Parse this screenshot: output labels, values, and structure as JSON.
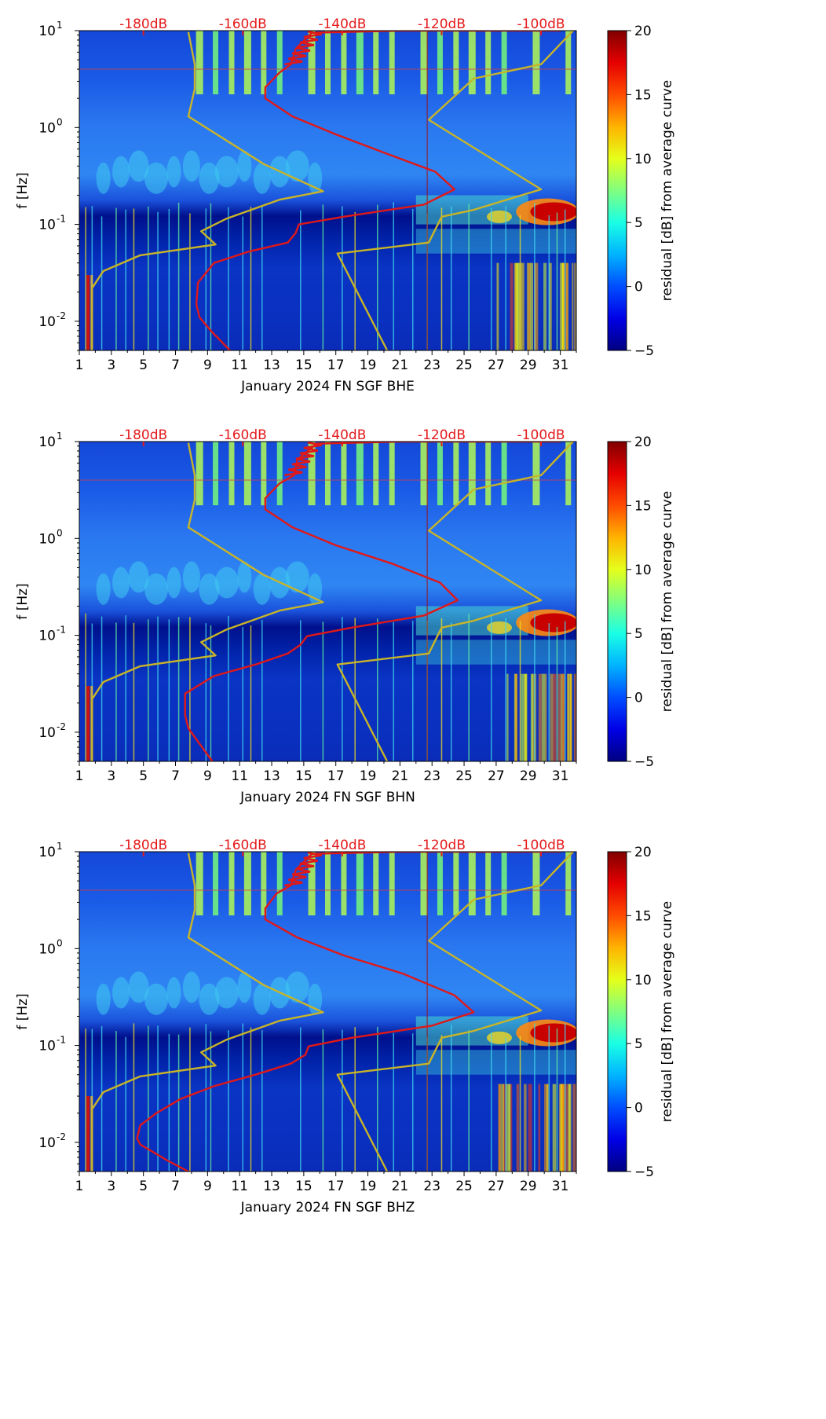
{
  "chart_data": [
    {
      "type": "heatmap",
      "title": "",
      "xlabel": "January 2024 FN SGF  BHE",
      "ylabel": "f [Hz]",
      "x_ticks": [
        "1",
        "3",
        "5",
        "7",
        "9",
        "11",
        "13",
        "15",
        "17",
        "19",
        "21",
        "23",
        "25",
        "27",
        "29",
        "31"
      ],
      "y_ticks": [
        "10^-2",
        "10^-1",
        "10^0",
        "10^1"
      ],
      "xlim": [
        1,
        32
      ],
      "ylim_hz": [
        0.005,
        10
      ],
      "top_labels": [
        "-180dB",
        "-160dB",
        "-140dB",
        "-120dB",
        "-100dB"
      ],
      "colorbar": {
        "label": "residual [dB] from average curve",
        "range": [
          -5,
          20
        ],
        "ticks": [
          "-5",
          "0",
          "5",
          "10",
          "15",
          "20"
        ]
      },
      "series": [
        {
          "name": "yellow model curve low",
          "points": [
            [
              1.8,
              0.005
            ],
            [
              1.8,
              0.022
            ],
            [
              2.5,
              0.033
            ],
            [
              4.8,
              0.048
            ],
            [
              9.5,
              0.062
            ],
            [
              8.6,
              0.085
            ],
            [
              10.2,
              0.115
            ],
            [
              13.5,
              0.18
            ],
            [
              16.2,
              0.22
            ],
            [
              12.5,
              0.42
            ],
            [
              7.8,
              1.3
            ],
            [
              8.2,
              2.5
            ],
            [
              8.2,
              4.5
            ],
            [
              7.8,
              9.7
            ]
          ]
        },
        {
          "name": "yellow model curve high",
          "points": [
            [
              20.2,
              0.005
            ],
            [
              17.1,
              0.05
            ],
            [
              22.8,
              0.065
            ],
            [
              23.6,
              0.12
            ],
            [
              25.5,
              0.14
            ],
            [
              29.8,
              0.23
            ],
            [
              22.8,
              1.2
            ],
            [
              25.6,
              3.2
            ],
            [
              29.8,
              4.5
            ],
            [
              31.8,
              10
            ]
          ]
        },
        {
          "name": "red mean PSD curve",
          "points": [
            [
              10.4,
              0.005
            ],
            [
              9.2,
              0.008
            ],
            [
              8.5,
              0.011
            ],
            [
              8.3,
              0.015
            ],
            [
              8.4,
              0.025
            ],
            [
              9.4,
              0.04
            ],
            [
              11.5,
              0.052
            ],
            [
              14.0,
              0.065
            ],
            [
              14.5,
              0.082
            ],
            [
              14.7,
              0.1
            ],
            [
              17.5,
              0.12
            ],
            [
              22.5,
              0.16
            ],
            [
              24.4,
              0.23
            ],
            [
              23.2,
              0.35
            ],
            [
              20.0,
              0.55
            ],
            [
              17.0,
              0.85
            ],
            [
              14.3,
              1.3
            ],
            [
              12.6,
              2.0
            ],
            [
              12.6,
              2.6
            ],
            [
              13.5,
              3.7
            ],
            [
              14.2,
              4.5
            ],
            [
              14.5,
              6.5
            ],
            [
              15.5,
              9.5
            ],
            [
              21,
              10
            ],
            [
              31,
              10
            ]
          ]
        }
      ]
    },
    {
      "type": "heatmap",
      "title": "",
      "xlabel": "January 2024 FN SGF  BHN",
      "ylabel": "f [Hz]",
      "x_ticks": [
        "1",
        "3",
        "5",
        "7",
        "9",
        "11",
        "13",
        "15",
        "17",
        "19",
        "21",
        "23",
        "25",
        "27",
        "29",
        "31"
      ],
      "y_ticks": [
        "10^-2",
        "10^-1",
        "10^0",
        "10^1"
      ],
      "xlim": [
        1,
        32
      ],
      "ylim_hz": [
        0.005,
        10
      ],
      "top_labels": [
        "-180dB",
        "-160dB",
        "-140dB",
        "-120dB",
        "-100dB"
      ],
      "colorbar": {
        "label": "residual [dB] from average curve",
        "range": [
          -5,
          20
        ],
        "ticks": [
          "-5",
          "0",
          "5",
          "10",
          "15",
          "20"
        ]
      },
      "series": [
        {
          "name": "yellow model curve low",
          "points": [
            [
              1.8,
              0.005
            ],
            [
              1.8,
              0.022
            ],
            [
              2.5,
              0.033
            ],
            [
              4.8,
              0.048
            ],
            [
              9.5,
              0.062
            ],
            [
              8.6,
              0.085
            ],
            [
              10.2,
              0.115
            ],
            [
              13.5,
              0.18
            ],
            [
              16.2,
              0.22
            ],
            [
              12.5,
              0.42
            ],
            [
              7.8,
              1.3
            ],
            [
              8.2,
              2.5
            ],
            [
              8.2,
              4.5
            ],
            [
              7.8,
              9.7
            ]
          ]
        },
        {
          "name": "yellow model curve high",
          "points": [
            [
              20.2,
              0.005
            ],
            [
              17.1,
              0.05
            ],
            [
              22.8,
              0.065
            ],
            [
              23.6,
              0.12
            ],
            [
              25.5,
              0.14
            ],
            [
              29.8,
              0.23
            ],
            [
              22.8,
              1.2
            ],
            [
              25.6,
              3.2
            ],
            [
              29.8,
              4.5
            ],
            [
              31.8,
              10
            ]
          ]
        },
        {
          "name": "red mean PSD curve",
          "points": [
            [
              9.3,
              0.005
            ],
            [
              8.4,
              0.008
            ],
            [
              7.8,
              0.011
            ],
            [
              7.6,
              0.015
            ],
            [
              7.6,
              0.025
            ],
            [
              9.4,
              0.038
            ],
            [
              12.0,
              0.05
            ],
            [
              14.0,
              0.065
            ],
            [
              14.8,
              0.08
            ],
            [
              15.2,
              0.098
            ],
            [
              18.0,
              0.12
            ],
            [
              22.5,
              0.16
            ],
            [
              24.6,
              0.23
            ],
            [
              23.5,
              0.35
            ],
            [
              20.5,
              0.55
            ],
            [
              17.0,
              0.85
            ],
            [
              14.3,
              1.3
            ],
            [
              12.6,
              2.0
            ],
            [
              12.6,
              2.6
            ],
            [
              13.5,
              3.7
            ],
            [
              14.4,
              4.5
            ],
            [
              14.6,
              6.5
            ],
            [
              15.8,
              9.5
            ],
            [
              21,
              10
            ],
            [
              31,
              10
            ]
          ]
        }
      ]
    },
    {
      "type": "heatmap",
      "title": "",
      "xlabel": "January 2024 FN SGF  BHZ",
      "ylabel": "f [Hz]",
      "x_ticks": [
        "1",
        "3",
        "5",
        "7",
        "9",
        "11",
        "13",
        "15",
        "17",
        "19",
        "21",
        "23",
        "25",
        "27",
        "29",
        "31"
      ],
      "y_ticks": [
        "10^-2",
        "10^-1",
        "10^0",
        "10^1"
      ],
      "xlim": [
        1,
        32
      ],
      "ylim_hz": [
        0.005,
        10
      ],
      "top_labels": [
        "-180dB",
        "-160dB",
        "-140dB",
        "-120dB",
        "-100dB"
      ],
      "colorbar": {
        "label": "residual [dB] from average curve",
        "range": [
          -5,
          20
        ],
        "ticks": [
          "-5",
          "0",
          "5",
          "10",
          "15",
          "20"
        ]
      },
      "series": [
        {
          "name": "yellow model curve low",
          "points": [
            [
              1.8,
              0.005
            ],
            [
              1.8,
              0.022
            ],
            [
              2.5,
              0.033
            ],
            [
              4.8,
              0.048
            ],
            [
              9.5,
              0.062
            ],
            [
              8.6,
              0.085
            ],
            [
              10.2,
              0.115
            ],
            [
              13.5,
              0.18
            ],
            [
              16.2,
              0.22
            ],
            [
              12.5,
              0.42
            ],
            [
              7.8,
              1.3
            ],
            [
              8.2,
              2.5
            ],
            [
              8.2,
              4.5
            ],
            [
              7.8,
              9.7
            ]
          ]
        },
        {
          "name": "yellow model curve high",
          "points": [
            [
              20.2,
              0.005
            ],
            [
              17.1,
              0.05
            ],
            [
              22.8,
              0.065
            ],
            [
              23.6,
              0.12
            ],
            [
              25.5,
              0.14
            ],
            [
              29.8,
              0.23
            ],
            [
              22.8,
              1.2
            ],
            [
              25.6,
              3.2
            ],
            [
              29.8,
              4.5
            ],
            [
              31.8,
              10
            ]
          ]
        },
        {
          "name": "red mean PSD curve",
          "points": [
            [
              7.8,
              0.005
            ],
            [
              6.5,
              0.0065
            ],
            [
              4.8,
              0.0095
            ],
            [
              4.6,
              0.011
            ],
            [
              4.8,
              0.015
            ],
            [
              5.8,
              0.02
            ],
            [
              7.3,
              0.028
            ],
            [
              9.4,
              0.038
            ],
            [
              12.0,
              0.05
            ],
            [
              14.2,
              0.065
            ],
            [
              15.1,
              0.08
            ],
            [
              15.3,
              0.098
            ],
            [
              18.0,
              0.12
            ],
            [
              23.0,
              0.16
            ],
            [
              25.6,
              0.22
            ],
            [
              24.4,
              0.33
            ],
            [
              21.2,
              0.55
            ],
            [
              17.5,
              0.85
            ],
            [
              14.6,
              1.3
            ],
            [
              12.6,
              2.0
            ],
            [
              12.6,
              2.6
            ],
            [
              13.3,
              3.7
            ],
            [
              14.2,
              4.5
            ],
            [
              14.5,
              6.5
            ],
            [
              15.5,
              9.5
            ],
            [
              21,
              10
            ],
            [
              31,
              10
            ]
          ]
        }
      ]
    }
  ]
}
